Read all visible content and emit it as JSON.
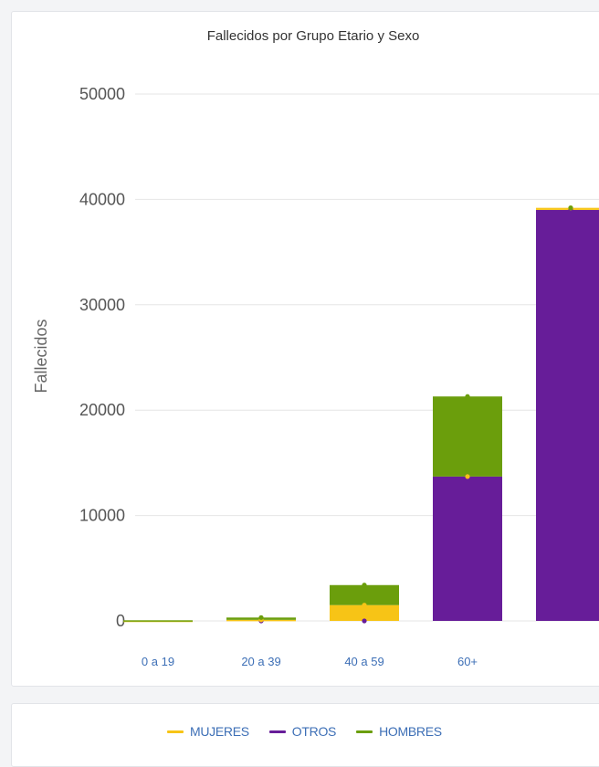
{
  "chart_data": {
    "type": "bar",
    "stacked": true,
    "title": "Fallecidos por Grupo Etario y Sexo",
    "xlabel": "",
    "ylabel": "Fallecidos",
    "ylim": [
      0,
      50000
    ],
    "yticks": [
      "0",
      "10000",
      "20000",
      "30000",
      "40000",
      "50000"
    ],
    "categories": [
      "0 a 19",
      "20 a 39",
      "40 a 59",
      "60+",
      ""
    ],
    "series": [
      {
        "name": "OTROS",
        "color": "#671d99",
        "values": [
          0,
          0,
          0,
          13700,
          39000
        ]
      },
      {
        "name": "MUJERES",
        "color": "#f7c416",
        "values": [
          20,
          100,
          1500,
          0,
          200
        ]
      },
      {
        "name": "HOMBRES",
        "color": "#6b9e0c",
        "values": [
          40,
          220,
          1900,
          7600,
          0
        ]
      }
    ],
    "grid": true,
    "legend_position": "bottom"
  },
  "legend": [
    {
      "label": "MUJERES",
      "color": "#f7c416"
    },
    {
      "label": "OTROS",
      "color": "#671d99"
    },
    {
      "label": "HOMBRES",
      "color": "#6b9e0c"
    }
  ]
}
